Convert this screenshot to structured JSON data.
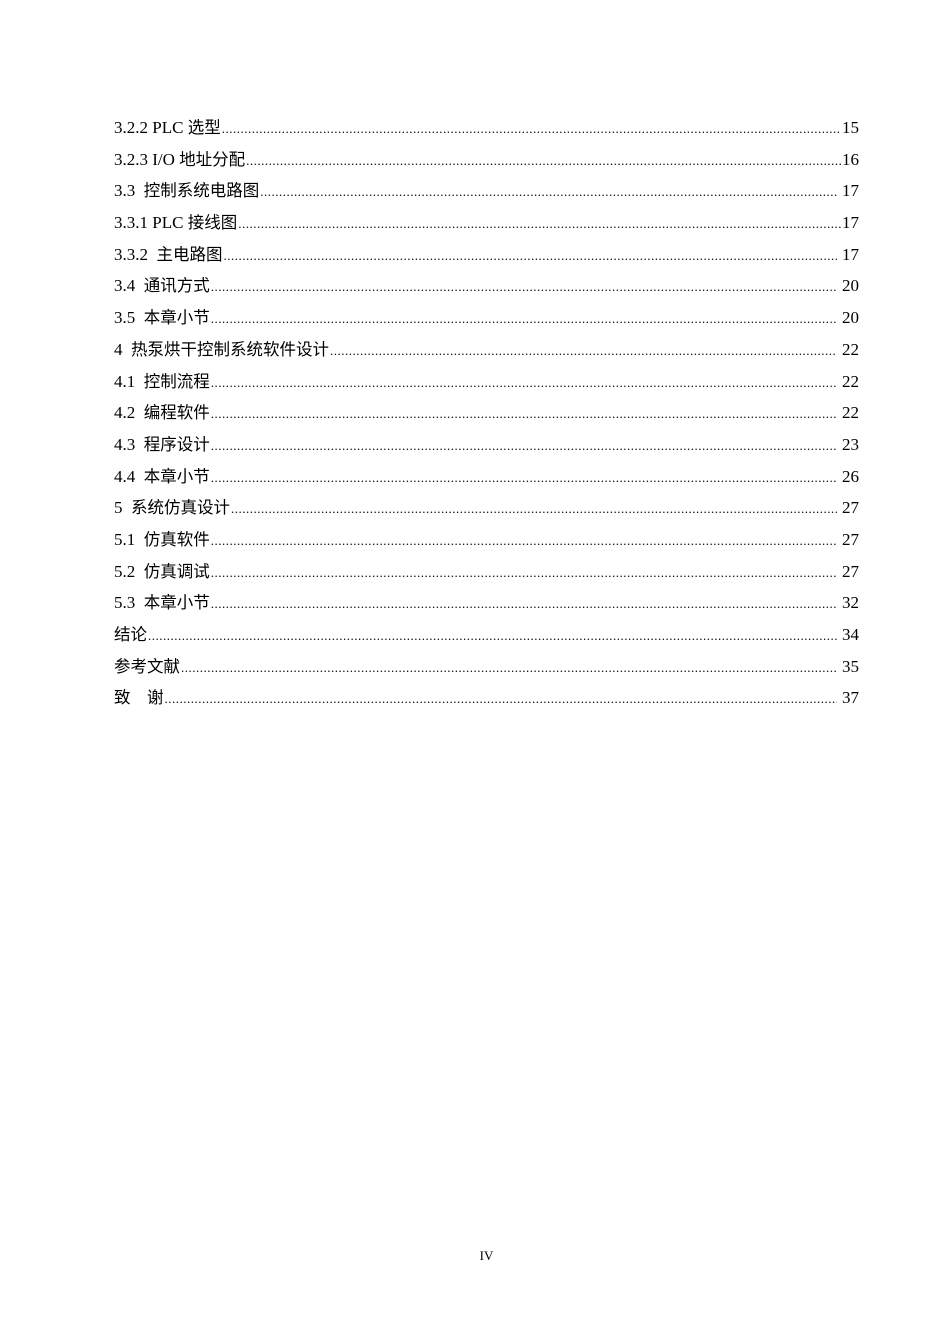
{
  "toc": [
    {
      "num": "3.2.2 PLC ",
      "title": "选型 ",
      "page": "15"
    },
    {
      "num": "3.2.3 I/O ",
      "title": "地址分配",
      "page": "16"
    },
    {
      "num": "3.3  ",
      "title": "控制系统电路图",
      "page": " 17"
    },
    {
      "num": "3.3.1 PLC ",
      "title": "接线图 ",
      "page": "17"
    },
    {
      "num": "3.3.2  ",
      "title": "主电路图",
      "page": " 17"
    },
    {
      "num": "3.4  ",
      "title": "通讯方式",
      "page": " 20"
    },
    {
      "num": "3.5  ",
      "title": "本章小节",
      "page": " 20"
    },
    {
      "num": "4  ",
      "title": "热泵烘干控制系统软件设计",
      "page": " 22"
    },
    {
      "num": "4.1  ",
      "title": "控制流程",
      "page": " 22"
    },
    {
      "num": "4.2  ",
      "title": "编程软件",
      "page": " 22"
    },
    {
      "num": "4.3  ",
      "title": "程序设计",
      "page": " 23"
    },
    {
      "num": "4.4  ",
      "title": "本章小节",
      "page": " 26"
    },
    {
      "num": "5  ",
      "title": "系统仿真设计",
      "page": " 27"
    },
    {
      "num": "5.1  ",
      "title": "仿真软件",
      "page": " 27"
    },
    {
      "num": "5.2  ",
      "title": "仿真调试",
      "page": " 27"
    },
    {
      "num": "5.3  ",
      "title": "本章小节",
      "page": " 32"
    },
    {
      "num": "",
      "title": "结论",
      "page": " 34"
    },
    {
      "num": "",
      "title": "参考文献",
      "page": " 35"
    },
    {
      "num": "",
      "title": "致　谢",
      "page": " 37"
    }
  ],
  "footer": {
    "page_number": "IV"
  }
}
